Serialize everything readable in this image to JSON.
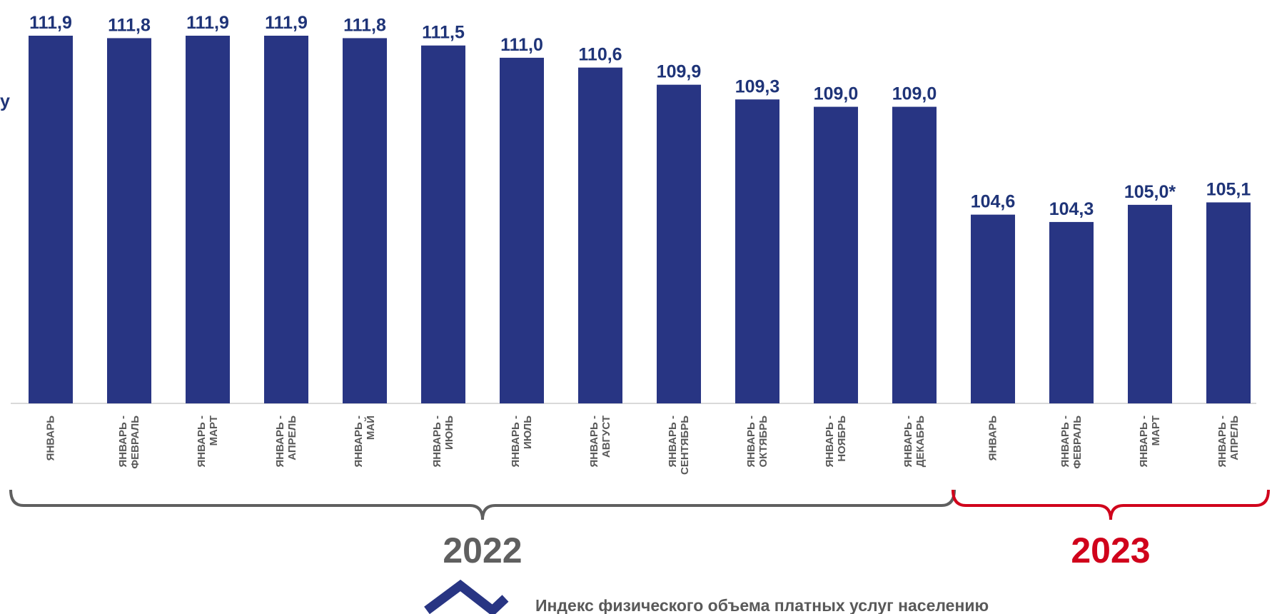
{
  "chart_data": {
    "type": "bar",
    "categories": [
      "ЯНВАРЬ",
      "ЯНВАРЬ - ФЕВРАЛЬ",
      "ЯНВАРЬ - МАРТ",
      "ЯНВАРЬ - АПРЕЛЬ",
      "ЯНВАРЬ - МАЙ",
      "ЯНВАРЬ - ИЮНЬ",
      "ЯНВАРЬ - ИЮЛЬ",
      "ЯНВАРЬ - АВГУСТ",
      "ЯНВАРЬ - СЕНТЯБРЬ",
      "ЯНВАРЬ - ОКТЯБРЬ",
      "ЯНВАРЬ - НОЯБРЬ",
      "ЯНВАРЬ - ДЕКАБРЬ",
      "ЯНВАРЬ",
      "ЯНВАРЬ - ФЕВРАЛЬ",
      "ЯНВАРЬ - МАРТ",
      "ЯНВАРЬ - АПРЕЛЬ"
    ],
    "category_lines": [
      [
        "ЯНВАРЬ"
      ],
      [
        "ЯНВАРЬ -",
        "ФЕВРАЛЬ"
      ],
      [
        "ЯНВАРЬ -",
        "МАРТ"
      ],
      [
        "ЯНВАРЬ -",
        "АПРЕЛЬ"
      ],
      [
        "ЯНВАРЬ -",
        "МАЙ"
      ],
      [
        "ЯНВАРЬ -",
        "ИЮНЬ"
      ],
      [
        "ЯНВАРЬ -",
        "ИЮЛЬ"
      ],
      [
        "ЯНВАРЬ -",
        "АВГУСТ"
      ],
      [
        "ЯНВАРЬ -",
        "СЕНТЯБРЬ"
      ],
      [
        "ЯНВАРЬ -",
        "ОКТЯБРЬ"
      ],
      [
        "ЯНВАРЬ -",
        "НОЯБРЬ"
      ],
      [
        "ЯНВАРЬ -",
        "ДЕКАБРЬ"
      ],
      [
        "ЯНВАРЬ"
      ],
      [
        "ЯНВАРЬ -",
        "ФЕВРАЛЬ"
      ],
      [
        "ЯНВАРЬ -",
        "МАРТ"
      ],
      [
        "ЯНВАРЬ -",
        "АПРЕЛЬ"
      ]
    ],
    "values": [
      111.9,
      111.8,
      111.9,
      111.9,
      111.8,
      111.5,
      111.0,
      110.6,
      109.9,
      109.3,
      109.0,
      109.0,
      104.6,
      104.3,
      105.0,
      105.1
    ],
    "value_labels": [
      "111,9",
      "111,8",
      "111,9",
      "111,9",
      "111,8",
      "111,5",
      "111,0",
      "110,6",
      "109,9",
      "109,3",
      "109,0",
      "109,0",
      "104,6",
      "104,3",
      "105,0*",
      "105,1"
    ],
    "ylim": [
      96.9,
      111.9
    ],
    "bar_color": "#283583",
    "groups": [
      {
        "label": "2022",
        "first": 0,
        "last": 11,
        "color": "#5f5f5f"
      },
      {
        "label": "2023",
        "first": 12,
        "last": 15,
        "color": "#d0021b"
      }
    ],
    "legend": {
      "label": "Индекс физического объема платных услуг населению",
      "marker_color": "#283583"
    },
    "cutoff_text": "у"
  }
}
